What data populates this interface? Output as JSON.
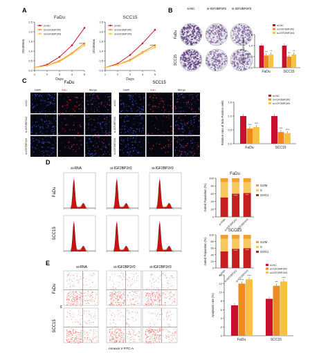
{
  "panels": {
    "A": {
      "letter": "A",
      "left": {
        "title": "FaDu",
        "ylabel": "OD450nm",
        "xlabel": "Days",
        "xticks": [
          "1",
          "2",
          "3",
          "4",
          "5"
        ],
        "yticks": [
          "0.0",
          "0.5",
          "1.0",
          "1.5",
          "2.0",
          "2.5"
        ],
        "sig": "****"
      },
      "right": {
        "title": "SCC15",
        "ylabel": "OD450nm",
        "xlabel": "Days",
        "xticks": [
          "1",
          "2",
          "3",
          "4",
          "5"
        ],
        "yticks": [
          "0.0",
          "0.5",
          "1.0",
          "1.5",
          "2.0",
          "2.5"
        ],
        "sig": "****"
      },
      "legend": [
        "si-NC",
        "si-IGF2BP2#2",
        "si-IGF2BP2#3"
      ]
    },
    "B": {
      "letter": "B",
      "col_labels": [
        "si-NC",
        "si-IGF2BP2#2",
        "si-IGF2BP2#3"
      ],
      "row_labels": [
        "FaDu",
        "SCC15"
      ],
      "bar_ylabel": "Relative Colony Area",
      "bar_yticks": [
        "0.0",
        "0.5",
        "1.0",
        "1.5"
      ],
      "legend": [
        "si-NC",
        "si-IGF2BP2#2",
        "si-IGF2BP2#3"
      ],
      "groups": [
        "FaDu",
        "SCC15"
      ],
      "sig": [
        "***",
        "**",
        "***",
        "**"
      ]
    },
    "C": {
      "letter": "C",
      "fadu_title": "FaDu",
      "scc_title": "SCC15",
      "headers": [
        "DAPI",
        "Edu",
        "Merge"
      ],
      "row_labels": [
        "si-NC",
        "si-IGF2BP2#2",
        "si-IGF2BP2#3"
      ],
      "bar_ylabel": "Relative ratio of Edu-Positive cells",
      "bar_yticks": [
        "0.0",
        "0.5",
        "1.0",
        "1.5"
      ],
      "legend": [
        "si-NC",
        "si-IGF2BP2#2",
        "si-IGF2BP2#3"
      ],
      "groups": [
        "FaDu",
        "SCC15"
      ],
      "sig": [
        "****",
        "****",
        "****",
        "****"
      ]
    },
    "D": {
      "letter": "D",
      "col_labels": [
        "si-RNA",
        "si-IGF2BP2#2",
        "si-IGF2BP2#3"
      ],
      "row_labels": [
        "FaDu",
        "SCC15"
      ],
      "bar1_title": "FaDu",
      "bar2_title": "SCC15",
      "bar_ylabel": "Gated Population (%)",
      "bar_yticks": [
        "0",
        "20",
        "40",
        "60",
        "80",
        "100"
      ],
      "legend": [
        "G2/M",
        "S",
        "G0/G1"
      ],
      "xcats": [
        "si-RNA",
        "si-IGF2BP2#2",
        "si-IGF2BP2#3"
      ],
      "sig1": [
        "****",
        "***"
      ],
      "sig2": [
        "****",
        "****"
      ]
    },
    "E": {
      "letter": "E",
      "col_labels": [
        "si-RNA",
        "si-IGF2BP2#2",
        "si-IGF2BP2#3"
      ],
      "row_labels": [
        "FaDu",
        "SCC15"
      ],
      "xlabel": "Annexin V FITC-A",
      "ylabel": "PI",
      "bar_ylabel": "Apoptosis rate (%)",
      "bar_yticks": [
        "0",
        "2",
        "4",
        "6",
        "8",
        "10",
        "12",
        "14"
      ],
      "legend": [
        "si-NC",
        "si-IGF2BP2#2",
        "si-IGF2BP2#3"
      ],
      "groups": [
        "FaDu",
        "SCC15"
      ],
      "sig": [
        "****",
        "****",
        "***",
        "****"
      ]
    }
  },
  "colors": {
    "nc": "#c8102e",
    "sh2": "#ef8a1e",
    "sh3": "#f5c242",
    "g2m": "#f0a030",
    "s": "#f7c95c",
    "g0g1": "#c41e1e",
    "hist": "#cc1111",
    "flow": "#e8402a"
  },
  "chart_data": [
    {
      "type": "line",
      "title": "FaDu",
      "xlabel": "Days",
      "ylabel": "OD450nm",
      "x": [
        1,
        2,
        3,
        4,
        5
      ],
      "ylim": [
        0,
        2.5
      ],
      "series": [
        {
          "name": "si-NC",
          "values": [
            0.15,
            0.3,
            0.7,
            1.3,
            2.2
          ]
        },
        {
          "name": "si-IGF2BP2#2",
          "values": [
            0.15,
            0.25,
            0.5,
            0.9,
            1.4
          ]
        },
        {
          "name": "si-IGF2BP2#3",
          "values": [
            0.15,
            0.25,
            0.45,
            0.85,
            1.3
          ]
        }
      ]
    },
    {
      "type": "line",
      "title": "SCC15",
      "xlabel": "Days",
      "ylabel": "OD450nm",
      "x": [
        1,
        2,
        3,
        4,
        5
      ],
      "ylim": [
        0,
        2.5
      ],
      "series": [
        {
          "name": "si-NC",
          "values": [
            0.15,
            0.35,
            0.8,
            1.4,
            2.1
          ]
        },
        {
          "name": "si-IGF2BP2#2",
          "values": [
            0.15,
            0.3,
            0.55,
            0.95,
            1.3
          ]
        },
        {
          "name": "si-IGF2BP2#3",
          "values": [
            0.15,
            0.3,
            0.5,
            0.9,
            1.2
          ]
        }
      ]
    },
    {
      "type": "bar",
      "ylabel": "Relative Colony Area",
      "categories": [
        "FaDu",
        "SCC15"
      ],
      "ylim": [
        0,
        1.5
      ],
      "series": [
        {
          "name": "si-NC",
          "values": [
            1.0,
            1.0
          ]
        },
        {
          "name": "si-IGF2BP2#2",
          "values": [
            0.55,
            0.5
          ]
        },
        {
          "name": "si-IGF2BP2#3",
          "values": [
            0.6,
            0.6
          ]
        }
      ]
    },
    {
      "type": "bar",
      "ylabel": "Relative ratio of Edu-Positive cells",
      "categories": [
        "FaDu",
        "SCC15"
      ],
      "ylim": [
        0,
        1.5
      ],
      "series": [
        {
          "name": "si-NC",
          "values": [
            1.0,
            1.0
          ]
        },
        {
          "name": "si-IGF2BP2#2",
          "values": [
            0.55,
            0.42
          ]
        },
        {
          "name": "si-IGF2BP2#3",
          "values": [
            0.6,
            0.38
          ]
        }
      ]
    },
    {
      "type": "bar",
      "title": "FaDu",
      "ylabel": "Gated Population (%)",
      "categories": [
        "si-RNA",
        "si-IGF2BP2#2",
        "si-IGF2BP2#3"
      ],
      "ylim": [
        0,
        100
      ],
      "series": [
        {
          "name": "G0/G1",
          "values": [
            50,
            60,
            62
          ]
        },
        {
          "name": "S",
          "values": [
            40,
            30,
            28
          ]
        },
        {
          "name": "G2/M",
          "values": [
            10,
            10,
            10
          ]
        }
      ]
    },
    {
      "type": "bar",
      "title": "SCC15",
      "ylabel": "Gated Population (%)",
      "categories": [
        "si-RNA",
        "si-IGF2BP2#2",
        "si-IGF2BP2#3"
      ],
      "ylim": [
        0,
        100
      ],
      "series": [
        {
          "name": "G0/G1",
          "values": [
            50,
            58,
            60
          ]
        },
        {
          "name": "S",
          "values": [
            38,
            30,
            28
          ]
        },
        {
          "name": "G2/M",
          "values": [
            12,
            12,
            12
          ]
        }
      ]
    },
    {
      "type": "bar",
      "ylabel": "Apoptosis rate (%)",
      "categories": [
        "FaDu",
        "SCC15"
      ],
      "ylim": [
        0,
        14
      ],
      "series": [
        {
          "name": "si-NC",
          "values": [
            7,
            8.5
          ]
        },
        {
          "name": "si-IGF2BP2#2",
          "values": [
            12,
            11.5
          ]
        },
        {
          "name": "si-IGF2BP2#3",
          "values": [
            13,
            12.5
          ]
        }
      ]
    }
  ]
}
